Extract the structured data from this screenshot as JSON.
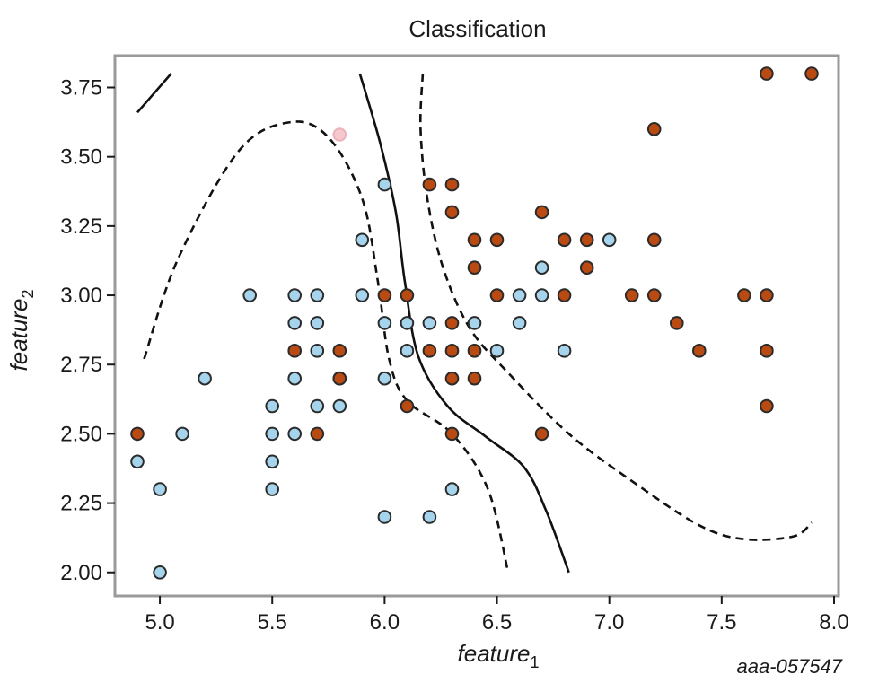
{
  "chart_data": {
    "type": "scatter",
    "title": "Classification",
    "xlabel": {
      "text": "feature",
      "sub": "1"
    },
    "ylabel": {
      "text": "feature",
      "sub": "2"
    },
    "xlim": [
      4.8,
      8.02
    ],
    "ylim": [
      1.915,
      3.865
    ],
    "xticks": [
      "5.0",
      "5.5",
      "6.0",
      "6.5",
      "7.0",
      "7.5",
      "8.0"
    ],
    "yticks": [
      "2.00",
      "2.25",
      "2.50",
      "2.75",
      "3.00",
      "3.25",
      "3.50",
      "3.75"
    ],
    "grid": false,
    "colors": {
      "class_a": "#a6d4ec",
      "class_b": "#b84a12",
      "highlight": "#f6c7cc",
      "marker_edge": "#2b2b2b",
      "boundary": "#111111"
    },
    "series": [
      {
        "class": "a",
        "points": [
          [
            4.9,
            2.4
          ],
          [
            5.0,
            2.3
          ],
          [
            5.0,
            2.0
          ],
          [
            5.1,
            2.5
          ],
          [
            5.2,
            2.7
          ],
          [
            5.4,
            3.0
          ],
          [
            5.5,
            2.6
          ],
          [
            5.5,
            2.5
          ],
          [
            5.5,
            2.4
          ],
          [
            5.5,
            2.3
          ],
          [
            5.6,
            3.0
          ],
          [
            5.6,
            2.9
          ],
          [
            5.6,
            2.7
          ],
          [
            5.6,
            2.5
          ],
          [
            5.7,
            3.0
          ],
          [
            5.7,
            2.9
          ],
          [
            5.7,
            2.8
          ],
          [
            5.7,
            2.6
          ],
          [
            5.8,
            2.7
          ],
          [
            5.8,
            2.6
          ],
          [
            5.9,
            3.2
          ],
          [
            5.9,
            3.0
          ],
          [
            6.0,
            3.4
          ],
          [
            6.0,
            2.9
          ],
          [
            6.0,
            2.7
          ],
          [
            6.0,
            2.2
          ],
          [
            6.1,
            2.9
          ],
          [
            6.1,
            2.8
          ],
          [
            6.2,
            2.9
          ],
          [
            6.2,
            2.2
          ],
          [
            6.3,
            2.3
          ],
          [
            6.4,
            2.9
          ],
          [
            6.5,
            2.8
          ],
          [
            6.6,
            3.0
          ],
          [
            6.6,
            2.9
          ],
          [
            6.7,
            3.1
          ],
          [
            6.7,
            3.0
          ],
          [
            6.8,
            2.8
          ],
          [
            7.0,
            3.2
          ]
        ]
      },
      {
        "class": "b",
        "points": [
          [
            4.9,
            2.5
          ],
          [
            5.6,
            2.8
          ],
          [
            5.7,
            2.5
          ],
          [
            5.8,
            2.8
          ],
          [
            5.8,
            2.7
          ],
          [
            6.0,
            3.0
          ],
          [
            6.1,
            3.0
          ],
          [
            6.1,
            2.6
          ],
          [
            6.2,
            3.4
          ],
          [
            6.2,
            2.8
          ],
          [
            6.3,
            3.4
          ],
          [
            6.3,
            3.3
          ],
          [
            6.3,
            2.9
          ],
          [
            6.3,
            2.8
          ],
          [
            6.3,
            2.7
          ],
          [
            6.3,
            2.5
          ],
          [
            6.4,
            3.2
          ],
          [
            6.4,
            3.1
          ],
          [
            6.4,
            2.8
          ],
          [
            6.4,
            2.7
          ],
          [
            6.5,
            3.2
          ],
          [
            6.5,
            3.0
          ],
          [
            6.7,
            3.3
          ],
          [
            6.7,
            2.5
          ],
          [
            6.8,
            3.2
          ],
          [
            6.8,
            3.0
          ],
          [
            6.9,
            3.2
          ],
          [
            6.9,
            3.1
          ],
          [
            7.1,
            3.0
          ],
          [
            7.2,
            3.6
          ],
          [
            7.2,
            3.2
          ],
          [
            7.2,
            3.0
          ],
          [
            7.3,
            2.9
          ],
          [
            7.4,
            2.8
          ],
          [
            7.6,
            3.0
          ],
          [
            7.7,
            3.8
          ],
          [
            7.7,
            3.0
          ],
          [
            7.7,
            2.8
          ],
          [
            7.7,
            2.6
          ],
          [
            7.9,
            3.8
          ]
        ]
      },
      {
        "class": "highlight",
        "points": [
          [
            5.8,
            3.58
          ]
        ]
      }
    ],
    "boundaries": [
      {
        "style": "solid",
        "points": [
          [
            5.89,
            3.8
          ],
          [
            5.98,
            3.55
          ],
          [
            6.05,
            3.3
          ],
          [
            6.09,
            3.05
          ],
          [
            6.15,
            2.78
          ],
          [
            6.28,
            2.6
          ],
          [
            6.45,
            2.49
          ],
          [
            6.62,
            2.38
          ],
          [
            6.72,
            2.22
          ],
          [
            6.82,
            2.0
          ]
        ]
      },
      {
        "style": "dashed",
        "points": [
          [
            6.17,
            3.8
          ],
          [
            6.16,
            3.6
          ],
          [
            6.19,
            3.35
          ],
          [
            6.26,
            3.1
          ],
          [
            6.38,
            2.88
          ],
          [
            6.55,
            2.72
          ],
          [
            6.82,
            2.5
          ],
          [
            7.1,
            2.33
          ],
          [
            7.4,
            2.17
          ],
          [
            7.6,
            2.12
          ],
          [
            7.82,
            2.13
          ],
          [
            7.9,
            2.18
          ]
        ]
      },
      {
        "style": "dashed",
        "points": [
          [
            4.93,
            2.77
          ],
          [
            5.08,
            3.13
          ],
          [
            5.35,
            3.52
          ],
          [
            5.58,
            3.625
          ],
          [
            5.75,
            3.57
          ],
          [
            5.9,
            3.35
          ],
          [
            5.97,
            3.05
          ],
          [
            6.02,
            2.77
          ],
          [
            6.1,
            2.62
          ],
          [
            6.3,
            2.5
          ],
          [
            6.46,
            2.3
          ],
          [
            6.55,
            2.0
          ]
        ]
      },
      {
        "style": "solid",
        "points": [
          [
            4.9,
            3.66
          ],
          [
            5.05,
            3.8
          ]
        ]
      }
    ]
  },
  "watermark": "aaa-057547"
}
